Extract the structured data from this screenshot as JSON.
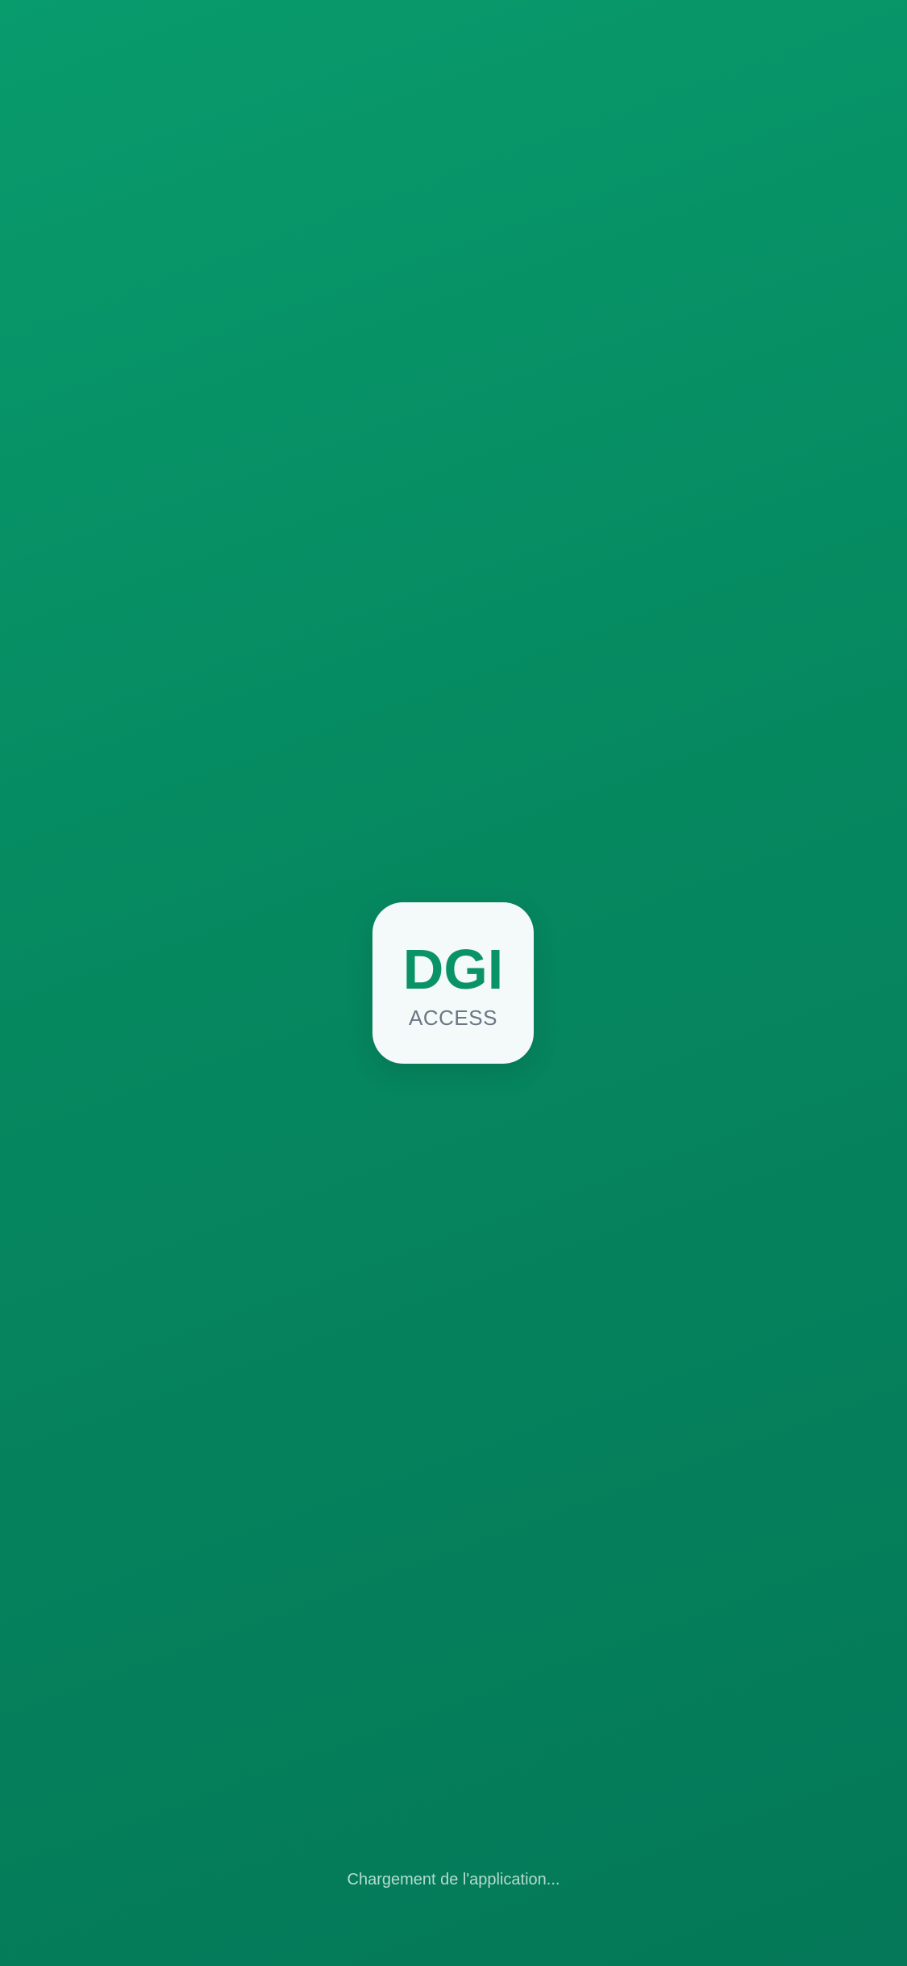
{
  "colors": {
    "background_start": "#089b6c",
    "background_end": "#047858",
    "card_background": "#f4faf9",
    "brand_green": "#0a9366",
    "subtitle_gray": "#6c7684"
  },
  "logo": {
    "title": "DGI",
    "subtitle": "ACCESS"
  },
  "status": {
    "loading_text": "Chargement de l'application..."
  }
}
